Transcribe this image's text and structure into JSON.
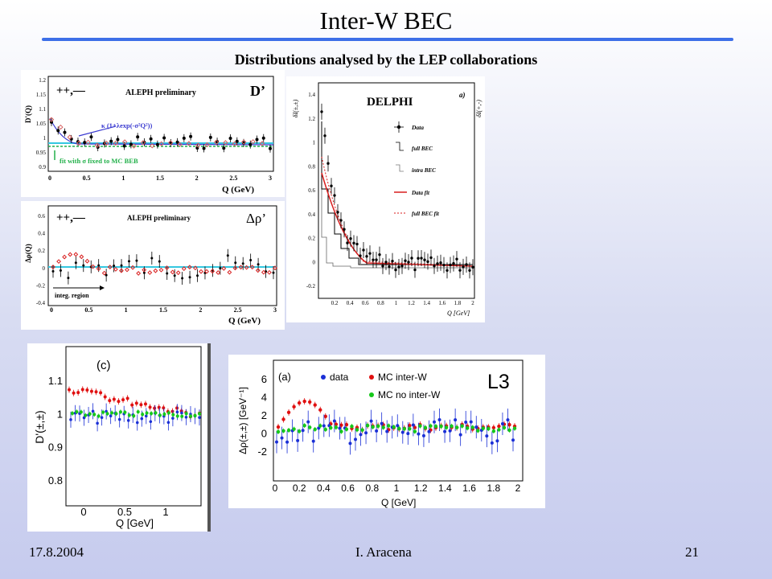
{
  "slide": {
    "title": "Inter-W BEC",
    "subtitle": "Distributions analysed by the LEP collaborations",
    "footer": {
      "date": "17.8.2004",
      "author": "I. Aracena",
      "page": "21"
    }
  },
  "panels": {
    "aleph_d": {
      "charge_label": "++,—",
      "experiment": "ALEPH preliminary",
      "quantity": "D’",
      "ylabel": "D'(Q)",
      "xlabel": "Q (GeV)",
      "yticks": [
        "1.2",
        "1.15",
        "1.1",
        "1.05",
        "1",
        "0.95",
        "0.9"
      ],
      "xticks": [
        "0",
        "0.5",
        "1",
        "1.5",
        "2",
        "2.5",
        "3"
      ],
      "annot_formula": "κ (1+λexp(-σ²Q²))",
      "annot_fit": "fit with σ fixed to MC BEB"
    },
    "aleph_rho": {
      "charge_label": "++,—",
      "experiment": "ALEPH preliminary",
      "quantity": "Δρ’",
      "ylabel": "Δρ(Q)",
      "xlabel": "Q (GeV)",
      "yticks": [
        "0.6",
        "0.4",
        "0.2",
        "0",
        "-0.2",
        "-0.4"
      ],
      "xticks": [
        "0",
        "0.5",
        "1",
        "1.5",
        "2",
        "2.5",
        "3"
      ],
      "annot_region": "integ. region"
    },
    "delphi": {
      "experiment": "DELPHI",
      "panel_tag": "a)",
      "ylabel_left": "δI(±,±)",
      "ylabel_right": "δI(+,-)",
      "xlabel": "Q [GeV]",
      "yticks": [
        "1.4",
        "1.2",
        "1",
        "0.8",
        "0.6",
        "0.4",
        "0.2",
        "0",
        "-0.2"
      ],
      "xticks": [
        "0.2",
        "0.4",
        "0.6",
        "0.8",
        "1",
        "1.2",
        "1.4",
        "1.6",
        "1.8",
        "2"
      ],
      "legend": [
        "Data",
        "full BEC",
        "intra BEC",
        "Data fit",
        "full BEC fit"
      ]
    },
    "panel_c": {
      "tag": "(c)",
      "ylabel": "D'(±,±)",
      "xlabel": "Q [GeV]",
      "yticks": [
        "1.1",
        "1",
        "0.9",
        "0.8"
      ],
      "xticks": [
        "0",
        "0.5",
        "1"
      ]
    },
    "l3": {
      "tag": "(a)",
      "experiment": "L3",
      "ylabel": "Δρ(±,±) [GeV⁻¹]",
      "xlabel": "Q [GeV]",
      "yticks": [
        "6",
        "4",
        "2",
        "0",
        "-2"
      ],
      "xticks": [
        "0",
        "0.2",
        "0.4",
        "0.6",
        "0.8",
        "1",
        "1.2",
        "1.4",
        "1.6",
        "1.8",
        "2"
      ],
      "legend": [
        "data",
        "MC inter-W",
        "MC no inter-W"
      ]
    }
  },
  "colors": {
    "rule": "#3d6fe8",
    "fit_cyan": "#34c7e0",
    "fit_green": "#22b04a",
    "annot_blue": "#3a3ad0",
    "delphi_red": "#d81e1e",
    "l3_red": "#e01010",
    "l3_green": "#15c81a",
    "l3_blue": "#1a2fd6"
  }
}
